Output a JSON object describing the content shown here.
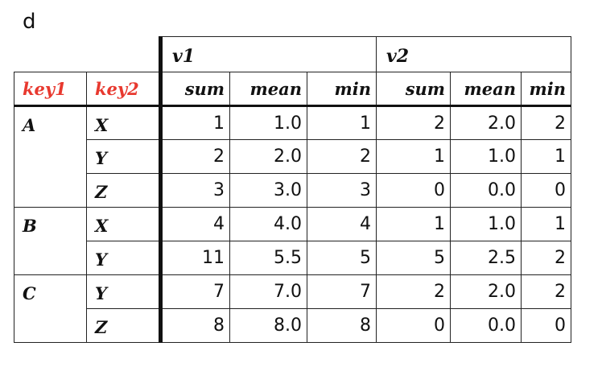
{
  "page_label": "d",
  "col_groups": [
    "v1",
    "v2"
  ],
  "key_headers": [
    "key1",
    "key2"
  ],
  "stat_headers": [
    "sum",
    "mean",
    "min",
    "sum",
    "mean",
    "min"
  ],
  "groups": [
    {
      "key1": "A",
      "rows": [
        {
          "key2": "X",
          "values": [
            "1",
            "1.0",
            "1",
            "2",
            "2.0",
            "2"
          ]
        },
        {
          "key2": "Y",
          "values": [
            "2",
            "2.0",
            "2",
            "1",
            "1.0",
            "1"
          ]
        },
        {
          "key2": "Z",
          "values": [
            "3",
            "3.0",
            "3",
            "0",
            "0.0",
            "0"
          ]
        }
      ]
    },
    {
      "key1": "B",
      "rows": [
        {
          "key2": "X",
          "values": [
            "4",
            "4.0",
            "4",
            "1",
            "1.0",
            "1"
          ]
        },
        {
          "key2": "Y",
          "values": [
            "11",
            "5.5",
            "5",
            "5",
            "2.5",
            "2"
          ]
        }
      ]
    },
    {
      "key1": "C",
      "rows": [
        {
          "key2": "Y",
          "values": [
            "7",
            "7.0",
            "7",
            "2",
            "2.0",
            "2"
          ]
        },
        {
          "key2": "Z",
          "values": [
            "8",
            "8.0",
            "8",
            "0",
            "0.0",
            "0"
          ]
        }
      ]
    }
  ],
  "colors": {
    "key_header": "#e8392f",
    "border": "#111111"
  }
}
